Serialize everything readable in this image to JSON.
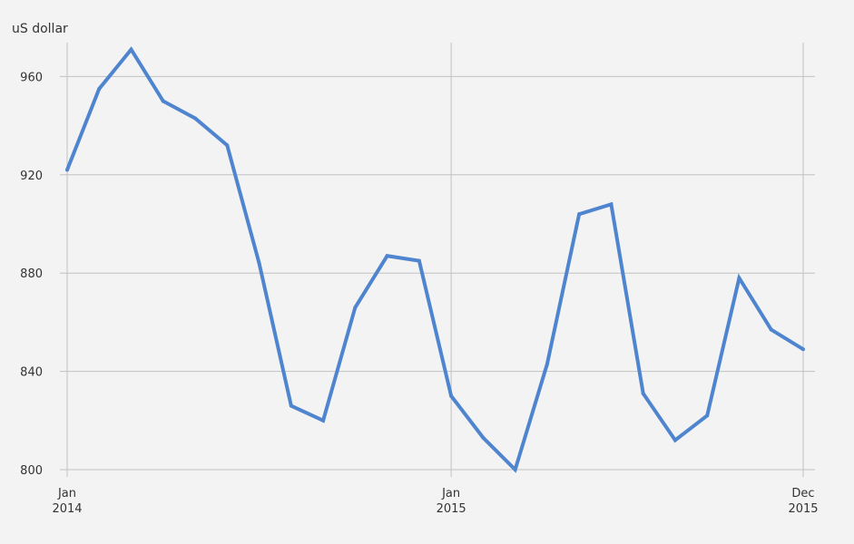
{
  "chart_data": {
    "type": "line",
    "ylabel": "uS dollar",
    "ylim": [
      800,
      970
    ],
    "yticks": [
      "960",
      "920",
      "880",
      "840",
      "800"
    ],
    "ytick_values": [
      960,
      920,
      880,
      840,
      800
    ],
    "x_ticks": [
      {
        "month": 0,
        "line1": "Jan",
        "line2": "2014"
      },
      {
        "month": 12,
        "line1": "Jan",
        "line2": "2015"
      },
      {
        "month": 23,
        "line1": "Dec",
        "line2": "2015"
      }
    ],
    "x_range": [
      0,
      23
    ],
    "x_months": [
      "Jan 2014",
      "Feb 2014",
      "Mar 2014",
      "Apr 2014",
      "May 2014",
      "Jun 2014",
      "Jul 2014",
      "Aug 2014",
      "Sep 2014",
      "Oct 2014",
      "Nov 2014",
      "Dec 2014",
      "Jan 2015",
      "Feb 2015",
      "Mar 2015",
      "Apr 2015",
      "May 2015",
      "Jun 2015",
      "Jul 2015",
      "Aug 2015",
      "Sep 2015",
      "Oct 2015",
      "Nov 2015",
      "Dec 2015"
    ],
    "series": [
      {
        "color": "#4f84cf",
        "values": [
          922,
          955,
          971,
          950,
          943,
          932,
          884,
          826,
          820,
          866,
          887,
          885,
          830,
          813,
          800,
          843,
          904,
          908,
          831,
          812,
          822,
          878,
          857,
          849
        ]
      }
    ],
    "grid": true,
    "grid_color": "#c2c2c2",
    "legend": "none"
  }
}
